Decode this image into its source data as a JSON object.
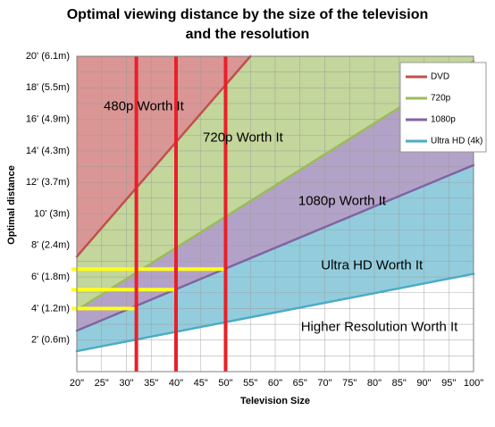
{
  "chart_data": {
    "type": "line",
    "title": "Optimal viewing distance by the size of the television and the resolution",
    "title_lines": [
      "Optimal viewing distance by the size of the television",
      "and the resolution"
    ],
    "xlabel": "Television Size",
    "ylabel": "Optimal distance",
    "x_ticks": [
      "20\"",
      "25\"",
      "30\"",
      "35\"",
      "40\"",
      "45\"",
      "50\"",
      "55\"",
      "60\"",
      "65\"",
      "70\"",
      "75\"",
      "80\"",
      "85\"",
      "90\"",
      "95\"",
      "100\""
    ],
    "x_tick_values": [
      20,
      25,
      30,
      35,
      40,
      45,
      50,
      55,
      60,
      65,
      70,
      75,
      80,
      85,
      90,
      95,
      100
    ],
    "y_ticks": [
      "2' (0.6m)",
      "4' (1.2m)",
      "6' (1.8m)",
      "8' (2.4m)",
      "10' (3m)",
      "12' (3.7m)",
      "14' (4.3m)",
      "16' (4.9m)",
      "18' (5.5m)",
      "20' (6.1m)"
    ],
    "y_tick_values": [
      2,
      4,
      6,
      8,
      10,
      12,
      14,
      16,
      18,
      20
    ],
    "xlim": [
      20,
      100
    ],
    "ylim": [
      0,
      20
    ],
    "grid": true,
    "legend_position": "top-right",
    "series": [
      {
        "name": "DVD",
        "color": "#c0504d",
        "fill": "#d99694",
        "x": [
          20,
          55
        ],
        "y": [
          7.3,
          20
        ]
      },
      {
        "name": "720p",
        "color": "#9bbb59",
        "fill": "#c3d69b",
        "x": [
          20,
          100
        ],
        "y": [
          3.9,
          19.7
        ]
      },
      {
        "name": "1080p",
        "color": "#8064a2",
        "fill": "#b3a2c7",
        "x": [
          20,
          100
        ],
        "y": [
          2.6,
          13.1
        ]
      },
      {
        "name": "Ultra HD (4k)",
        "color": "#4bacc6",
        "fill": "#93cddd",
        "x": [
          20,
          100
        ],
        "y": [
          1.3,
          6.2
        ]
      }
    ],
    "region_labels": [
      {
        "text": "480p Worth It",
        "x": 33.5,
        "y": 16.8
      },
      {
        "text": "720p Worth It",
        "x": 53.5,
        "y": 14.8
      },
      {
        "text": "1080p Worth It",
        "x": 73.5,
        "y": 10.8
      },
      {
        "text": "Ultra HD Worth It",
        "x": 79.5,
        "y": 6.7
      },
      {
        "text": "Higher Resolution Worth It",
        "x": 81,
        "y": 2.8
      }
    ],
    "markers": {
      "vertical_color": "#e8202a",
      "horizontal_color": "#ffff1a",
      "vertical_lines": [
        {
          "x": 32,
          "y_from": 0,
          "y_to": 20
        },
        {
          "x": 40,
          "y_from": 0,
          "y_to": 20
        },
        {
          "x": 50,
          "y_from": 0,
          "y_to": 20
        }
      ],
      "horizontal_lines": [
        {
          "y": 6.5,
          "x_from": 20,
          "x_to": 50
        },
        {
          "y": 5.2,
          "x_from": 20,
          "x_to": 40
        },
        {
          "y": 4.0,
          "x_from": 20,
          "x_to": 32
        }
      ]
    }
  }
}
